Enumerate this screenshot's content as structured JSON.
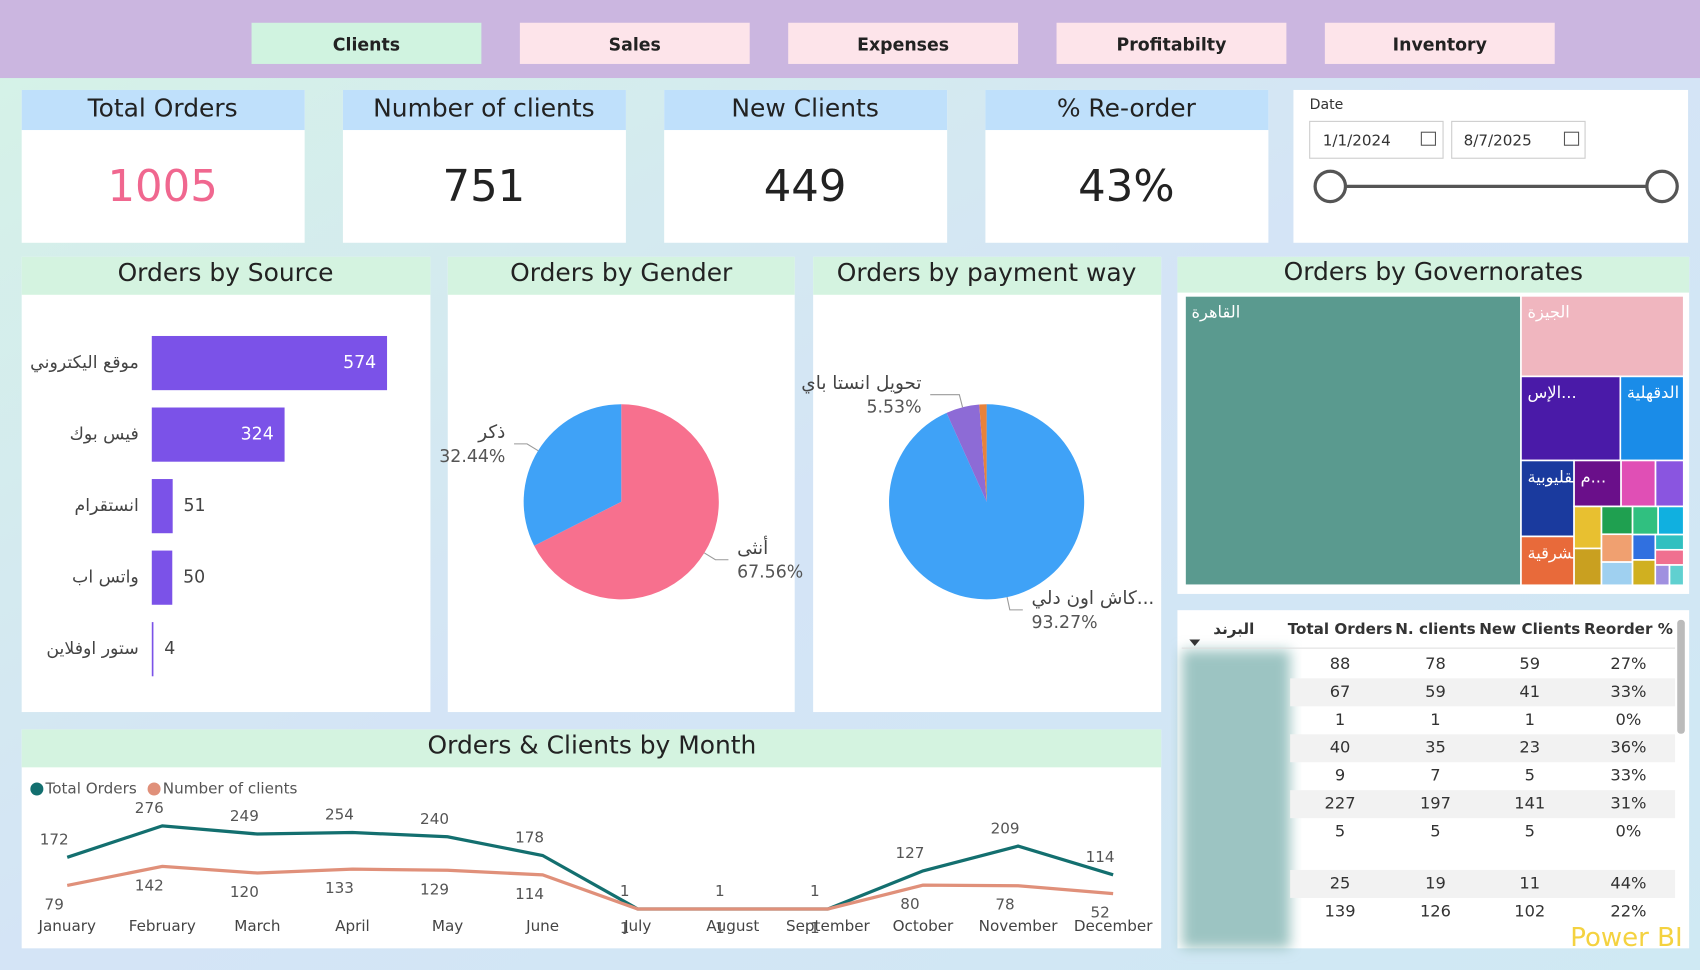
{
  "nav": {
    "tabs": [
      "Clients",
      "Sales",
      "Expenses",
      "Profitabilty",
      "Inventory"
    ]
  },
  "kpis": [
    {
      "title": "Total Orders",
      "value": 1005
    },
    {
      "title": "Number of clients",
      "value": 751
    },
    {
      "title": "New Clients",
      "value": 449
    },
    {
      "title": "% Re-order",
      "value": "43%"
    }
  ],
  "date_filter": {
    "label": "Date",
    "start": "1/1/2024",
    "end": "8/7/2025"
  },
  "chart_data": [
    {
      "type": "hbar",
      "title": "Orders by Source",
      "categories": [
        "موقع اليكتروني",
        "فيس بوك",
        "انستقرام",
        "واتس اب",
        "ستور اوفلاين"
      ],
      "values": [
        574,
        324,
        51,
        50,
        4
      ],
      "color": "#7b52e8"
    },
    {
      "type": "pie",
      "title": "Orders by Gender",
      "categories": [
        "أنثى",
        "ذكر"
      ],
      "values": [
        67.56,
        32.44
      ],
      "value_labels": [
        "67.56%",
        "32.44%"
      ],
      "colors": [
        "#f7708e",
        "#3fa2f7"
      ]
    },
    {
      "type": "pie",
      "title": "Orders by payment way",
      "categories": [
        "كاش اون دلي...",
        "تحويل انستا باي",
        null
      ],
      "values": [
        93.27,
        5.53,
        1.2
      ],
      "value_labels": [
        "93.27%",
        "5.53%",
        null
      ],
      "colors": [
        "#3fa2f7",
        "#8d6bd6",
        "#e8823a"
      ]
    },
    {
      "type": "treemap",
      "title": "Orders by Governorates",
      "categories": [
        "القاهرة",
        "الجيزة",
        "الإس...",
        "الدقهلية",
        "القليوبية",
        "الشرقية",
        "م...",
        null,
        null,
        null,
        null,
        null,
        null,
        null,
        null,
        null,
        null,
        null,
        null,
        null,
        null,
        null
      ],
      "values": [
        675,
        91,
        58,
        37,
        28,
        18,
        15,
        11,
        9,
        8,
        7,
        6,
        6,
        5,
        5,
        5,
        4,
        4,
        3,
        3,
        2,
        2
      ],
      "colors": [
        "#5a9a8f",
        "#f0b6bf",
        "#4a1aa8",
        "#1a8ce8",
        "#1a3a9e",
        "#e86a3a",
        "#6a0f8a",
        "#e04fb5",
        "#8a55e0",
        "#e8c030",
        "#c9a020",
        "#1fa050",
        "#f0a070",
        "#9fd0f0",
        "#30c080",
        "#10b0e0",
        "#3070e0",
        "#d0b020",
        "#30c0c0",
        "#f07090",
        "#a090e0",
        "#60d0d0"
      ]
    },
    {
      "type": "line",
      "title": "Orders & Clients by Month",
      "legend": "top-left",
      "categories": [
        "January",
        "February",
        "March",
        "April",
        "May",
        "June",
        "July",
        "August",
        "September",
        "October",
        "November",
        "December"
      ],
      "series": [
        {
          "name": "Total Orders",
          "color": "#136f6f",
          "values": [
            172,
            276,
            249,
            254,
            240,
            178,
            1,
            1,
            1,
            127,
            209,
            114
          ]
        },
        {
          "name": "Number of clients",
          "color": "#e0907a",
          "values": [
            79,
            142,
            120,
            133,
            129,
            114,
            1,
            1,
            1,
            80,
            78,
            52
          ]
        }
      ]
    }
  ],
  "table": {
    "headers": [
      "البرند",
      "Total Orders",
      "N. clients",
      "New Clients",
      "Reorder %"
    ],
    "rows": [
      [
        88,
        78,
        59,
        "27%"
      ],
      [
        67,
        59,
        41,
        "33%"
      ],
      [
        1,
        1,
        1,
        "0%"
      ],
      [
        40,
        35,
        23,
        "36%"
      ],
      [
        9,
        7,
        5,
        "33%"
      ],
      [
        227,
        197,
        141,
        "31%"
      ],
      [
        5,
        5,
        5,
        "0%"
      ],
      [
        25,
        19,
        11,
        "44%"
      ],
      [
        139,
        126,
        102,
        "22%"
      ]
    ]
  },
  "watermark": "Power BI"
}
